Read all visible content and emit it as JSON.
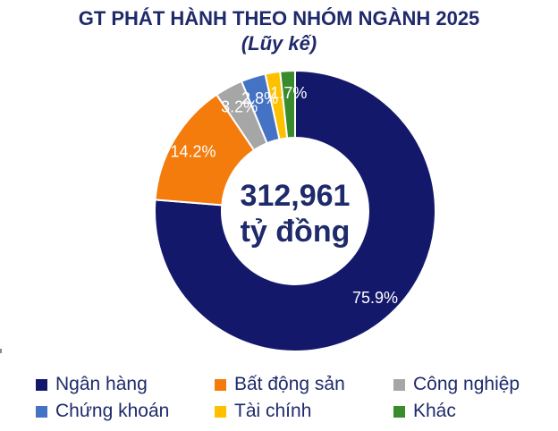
{
  "chart_data": {
    "type": "pie",
    "title": "GT PHÁT HÀNH THEO NHÓM NGÀNH 2025",
    "subtitle": "(Lũy kế)",
    "center_value": "312,961",
    "center_unit": "tỷ đồng",
    "legend_position": "bottom",
    "categories": [
      "Ngân hàng",
      "Bất động sản",
      "Công nghiệp",
      "Chứng khoán",
      "Tài chính",
      "Khác"
    ],
    "values": [
      75.9,
      14.2,
      3.2,
      2.8,
      1.7,
      1.7
    ],
    "labels": [
      "75.9%",
      "14.2%",
      "3.2%",
      "2.8%",
      "",
      "1.7%"
    ],
    "colors": [
      "#14186b",
      "#f47c0c",
      "#a6a6a6",
      "#4472c4",
      "#ffc000",
      "#3a8b2e"
    ],
    "label_colors": [
      "#ffffff",
      "#ffffff",
      "#ffffff",
      "#ffffff",
      "#ffffff",
      "#ffffff"
    ]
  }
}
